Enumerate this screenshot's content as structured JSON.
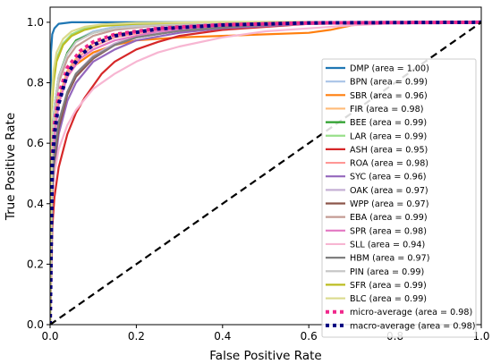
{
  "chart_data": {
    "type": "line",
    "title": "",
    "xlabel": "False Positive Rate",
    "ylabel": "True Positive Rate",
    "xlim": [
      0.0,
      1.0
    ],
    "ylim": [
      0.0,
      1.05
    ],
    "xticks": [
      "0.0",
      "0.2",
      "0.4",
      "0.6",
      "0.8",
      "1.0"
    ],
    "yticks": [
      "0.0",
      "0.2",
      "0.4",
      "0.6",
      "0.8",
      "1.0"
    ],
    "grid": false,
    "legend_position": "lower right",
    "series": [
      {
        "name": "DMP (area = 1.00)",
        "color": "#1f77b4",
        "style": "solid",
        "x": [
          0,
          0.002,
          0.005,
          0.01,
          0.02,
          0.05,
          0.1,
          0.2,
          1.0
        ],
        "y": [
          0,
          0.9,
          0.96,
          0.98,
          0.995,
          1.0,
          1.0,
          1.0,
          1.0
        ]
      },
      {
        "name": "BPN (area = 0.99)",
        "color": "#aec7e8",
        "style": "solid",
        "x": [
          0,
          0.005,
          0.01,
          0.02,
          0.04,
          0.06,
          0.1,
          0.15,
          0.25,
          0.4,
          1.0
        ],
        "y": [
          0,
          0.62,
          0.72,
          0.82,
          0.9,
          0.94,
          0.97,
          0.985,
          0.995,
          1.0,
          1.0
        ]
      },
      {
        "name": "SBR (area = 0.96)",
        "color": "#ff7f0e",
        "style": "solid",
        "x": [
          0,
          0.005,
          0.01,
          0.02,
          0.04,
          0.06,
          0.1,
          0.15,
          0.2,
          0.3,
          0.4,
          0.5,
          0.6,
          0.65,
          0.7,
          0.75,
          0.8,
          1.0
        ],
        "y": [
          0,
          0.55,
          0.66,
          0.75,
          0.82,
          0.86,
          0.9,
          0.925,
          0.94,
          0.95,
          0.955,
          0.96,
          0.965,
          0.975,
          0.99,
          1.0,
          1.0,
          1.0
        ]
      },
      {
        "name": "FIR (area = 0.98)",
        "color": "#ffbb78",
        "style": "solid",
        "x": [
          0,
          0.005,
          0.01,
          0.02,
          0.04,
          0.07,
          0.1,
          0.15,
          0.25,
          0.4,
          0.6,
          1.0
        ],
        "y": [
          0,
          0.55,
          0.65,
          0.75,
          0.84,
          0.9,
          0.93,
          0.96,
          0.98,
          0.99,
          0.995,
          1.0
        ]
      },
      {
        "name": "BEE (area = 0.99)",
        "color": "#2ca02c",
        "style": "solid",
        "x": [
          0,
          0.005,
          0.01,
          0.02,
          0.04,
          0.06,
          0.1,
          0.15,
          0.25,
          0.4,
          1.0
        ],
        "y": [
          0,
          0.6,
          0.72,
          0.82,
          0.9,
          0.94,
          0.965,
          0.98,
          0.99,
          1.0,
          1.0
        ]
      },
      {
        "name": "LAR (area = 0.99)",
        "color": "#98df8a",
        "style": "solid",
        "x": [
          0,
          0.003,
          0.008,
          0.015,
          0.03,
          0.05,
          0.08,
          0.12,
          0.2,
          0.35,
          1.0
        ],
        "y": [
          0,
          0.72,
          0.82,
          0.88,
          0.93,
          0.96,
          0.98,
          0.99,
          0.995,
          1.0,
          1.0
        ]
      },
      {
        "name": "ASH (area = 0.95)",
        "color": "#d62728",
        "style": "solid",
        "x": [
          0,
          0.005,
          0.01,
          0.02,
          0.04,
          0.06,
          0.08,
          0.1,
          0.12,
          0.15,
          0.2,
          0.25,
          0.3,
          0.4,
          0.5,
          0.6,
          1.0
        ],
        "y": [
          0,
          0.32,
          0.42,
          0.52,
          0.63,
          0.7,
          0.75,
          0.79,
          0.83,
          0.87,
          0.91,
          0.935,
          0.955,
          0.975,
          0.985,
          0.995,
          1.0
        ]
      },
      {
        "name": "ROA (area = 0.98)",
        "color": "#ff9896",
        "style": "solid",
        "x": [
          0,
          0.005,
          0.01,
          0.02,
          0.04,
          0.07,
          0.1,
          0.15,
          0.25,
          0.4,
          0.6,
          1.0
        ],
        "y": [
          0,
          0.5,
          0.62,
          0.73,
          0.83,
          0.89,
          0.92,
          0.95,
          0.975,
          0.99,
          0.997,
          1.0
        ]
      },
      {
        "name": "SYC (area = 0.96)",
        "color": "#9467bd",
        "style": "solid",
        "x": [
          0,
          0.005,
          0.01,
          0.02,
          0.04,
          0.06,
          0.1,
          0.15,
          0.2,
          0.3,
          0.4,
          0.6,
          1.0
        ],
        "y": [
          0,
          0.4,
          0.52,
          0.63,
          0.74,
          0.8,
          0.87,
          0.91,
          0.94,
          0.965,
          0.98,
          0.995,
          1.0
        ]
      },
      {
        "name": "OAK (area = 0.97)",
        "color": "#c5b0d5",
        "style": "solid",
        "x": [
          0,
          0.005,
          0.01,
          0.02,
          0.04,
          0.06,
          0.1,
          0.15,
          0.2,
          0.3,
          0.45,
          0.6,
          1.0
        ],
        "y": [
          0,
          0.45,
          0.56,
          0.67,
          0.77,
          0.83,
          0.89,
          0.93,
          0.955,
          0.975,
          0.99,
          0.996,
          1.0
        ]
      },
      {
        "name": "WPP (area = 0.97)",
        "color": "#8c564b",
        "style": "solid",
        "x": [
          0,
          0.005,
          0.01,
          0.02,
          0.04,
          0.06,
          0.1,
          0.15,
          0.2,
          0.3,
          0.45,
          0.6,
          1.0
        ],
        "y": [
          0,
          0.42,
          0.54,
          0.65,
          0.76,
          0.82,
          0.88,
          0.925,
          0.95,
          0.972,
          0.988,
          0.996,
          1.0
        ]
      },
      {
        "name": "EBA (area = 0.99)",
        "color": "#c49c94",
        "style": "solid",
        "x": [
          0,
          0.005,
          0.01,
          0.02,
          0.04,
          0.06,
          0.1,
          0.15,
          0.25,
          0.4,
          1.0
        ],
        "y": [
          0,
          0.58,
          0.7,
          0.8,
          0.88,
          0.92,
          0.955,
          0.975,
          0.99,
          0.998,
          1.0
        ]
      },
      {
        "name": "SPR (area = 0.98)",
        "color": "#e377c2",
        "style": "solid",
        "x": [
          0,
          0.005,
          0.01,
          0.02,
          0.04,
          0.07,
          0.1,
          0.15,
          0.25,
          0.4,
          0.6,
          1.0
        ],
        "y": [
          0,
          0.5,
          0.62,
          0.73,
          0.82,
          0.88,
          0.91,
          0.94,
          0.97,
          0.985,
          0.995,
          1.0
        ]
      },
      {
        "name": "SLL (area = 0.94)",
        "color": "#f7b6d2",
        "style": "solid",
        "x": [
          0,
          0.005,
          0.01,
          0.02,
          0.04,
          0.06,
          0.1,
          0.15,
          0.2,
          0.25,
          0.3,
          0.4,
          0.5,
          0.6,
          0.7,
          0.8,
          1.0
        ],
        "y": [
          0,
          0.4,
          0.5,
          0.58,
          0.66,
          0.71,
          0.78,
          0.83,
          0.87,
          0.9,
          0.92,
          0.95,
          0.97,
          0.98,
          0.99,
          0.997,
          1.0
        ]
      },
      {
        "name": "HBM (area = 0.97)",
        "color": "#7f7f7f",
        "style": "solid",
        "x": [
          0,
          0.005,
          0.01,
          0.02,
          0.04,
          0.06,
          0.1,
          0.15,
          0.2,
          0.3,
          0.45,
          0.6,
          1.0
        ],
        "y": [
          0,
          0.44,
          0.56,
          0.67,
          0.77,
          0.83,
          0.885,
          0.925,
          0.95,
          0.972,
          0.988,
          0.996,
          1.0
        ]
      },
      {
        "name": "PIN (area = 0.99)",
        "color": "#c7c7c7",
        "style": "solid",
        "x": [
          0,
          0.005,
          0.01,
          0.02,
          0.04,
          0.06,
          0.1,
          0.15,
          0.25,
          0.4,
          1.0
        ],
        "y": [
          0,
          0.6,
          0.72,
          0.82,
          0.895,
          0.935,
          0.965,
          0.98,
          0.992,
          0.999,
          1.0
        ]
      },
      {
        "name": "SFR (area = 0.99)",
        "color": "#bcbd22",
        "style": "solid",
        "x": [
          0,
          0.003,
          0.008,
          0.015,
          0.03,
          0.05,
          0.08,
          0.12,
          0.2,
          0.35,
          1.0
        ],
        "y": [
          0,
          0.7,
          0.8,
          0.87,
          0.925,
          0.955,
          0.975,
          0.988,
          0.995,
          1.0,
          1.0
        ]
      },
      {
        "name": "BLC (area = 0.99)",
        "color": "#dbdb8d",
        "style": "solid",
        "x": [
          0,
          0.003,
          0.008,
          0.015,
          0.03,
          0.05,
          0.08,
          0.12,
          0.2,
          0.35,
          1.0
        ],
        "y": [
          0,
          0.74,
          0.84,
          0.9,
          0.945,
          0.97,
          0.985,
          0.993,
          0.998,
          1.0,
          1.0
        ]
      },
      {
        "name": "micro-average (area = 0.98)",
        "color": "#f0288c",
        "style": "dotted",
        "x": [
          0,
          0.005,
          0.01,
          0.02,
          0.04,
          0.07,
          0.1,
          0.15,
          0.25,
          0.4,
          0.6,
          1.0
        ],
        "y": [
          0,
          0.55,
          0.66,
          0.76,
          0.85,
          0.905,
          0.935,
          0.96,
          0.98,
          0.992,
          0.998,
          1.0
        ]
      },
      {
        "name": "macro-average (area = 0.98)",
        "color": "#000080",
        "style": "dotted",
        "x": [
          0,
          0.005,
          0.01,
          0.02,
          0.04,
          0.07,
          0.1,
          0.15,
          0.25,
          0.4,
          0.6,
          1.0
        ],
        "y": [
          0,
          0.52,
          0.63,
          0.73,
          0.83,
          0.89,
          0.925,
          0.955,
          0.978,
          0.991,
          0.998,
          1.0
        ]
      }
    ],
    "reference_line": {
      "x": [
        0,
        1
      ],
      "y": [
        0,
        1
      ],
      "color": "#000000",
      "style": "dashed"
    }
  }
}
